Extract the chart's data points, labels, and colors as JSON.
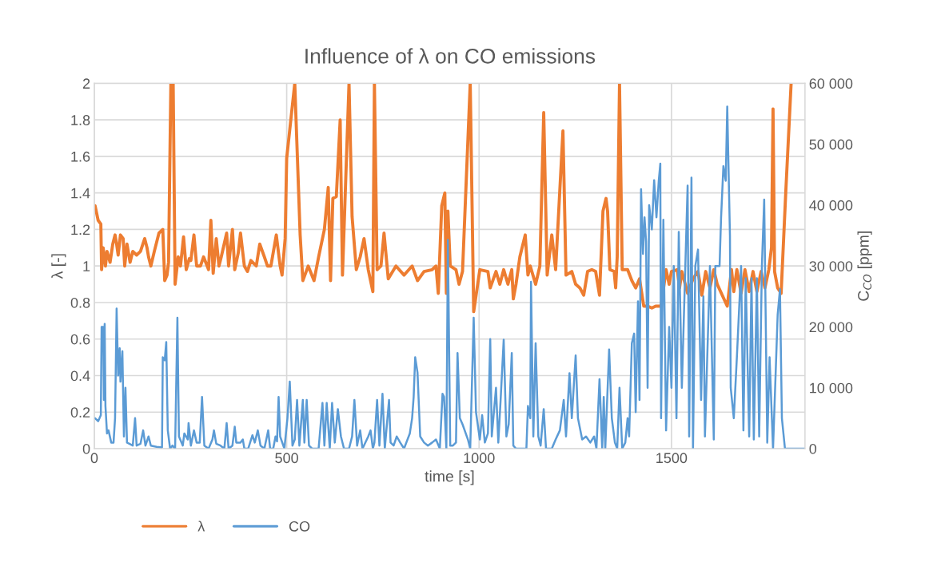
{
  "chart_data": {
    "type": "line",
    "title": "Influence of λ on CO emissions",
    "xlabel": "time [s]",
    "ylabel": "λ [-]",
    "y2label": "C$_{CO}$ [ppm]",
    "xlim": [
      0,
      1847
    ],
    "xticks": [
      0,
      500,
      1000,
      1500
    ],
    "ylim": [
      0,
      2
    ],
    "yticks": [
      0,
      0.2,
      0.4,
      0.6,
      0.8,
      1,
      1.2,
      1.4,
      1.6,
      1.8,
      2
    ],
    "y2lim": [
      0,
      60000
    ],
    "y2ticks": [
      {
        "value": 0,
        "label": "0"
      },
      {
        "value": 10000,
        "label": "10 000"
      },
      {
        "value": 20000,
        "label": "20 000"
      },
      {
        "value": 30000,
        "label": "30 000"
      },
      {
        "value": 40000,
        "label": "40 000"
      },
      {
        "value": 50000,
        "label": "50 000"
      },
      {
        "value": 60000,
        "label": "60 000"
      }
    ],
    "grid": true,
    "legend": "bottom",
    "marker": "none",
    "line_style": "solid",
    "series": [
      {
        "name": "λ",
        "color": "#ed7d31",
        "x": [
          2,
          10,
          17,
          19,
          23,
          29,
          33,
          41,
          48,
          54,
          58,
          62,
          68,
          75,
          79,
          85,
          93,
          100,
          110,
          120,
          131,
          137,
          141,
          147,
          156,
          168,
          178,
          183,
          189,
          193,
          199,
          205,
          210,
          218,
          224,
          232,
          239,
          247,
          251,
          259,
          266,
          276,
          284,
          297,
          303,
          309,
          317,
          324,
          330,
          344,
          349,
          359,
          365,
          374,
          380,
          390,
          398,
          407,
          421,
          430,
          442,
          450,
          459,
          473,
          483,
          488,
          496,
          500,
          521,
          535,
          542,
          556,
          571,
          583,
          598,
          608,
          614,
          620,
          629,
          639,
          645,
          662,
          670,
          681,
          691,
          701,
          712,
          724,
          728,
          735,
          745,
          753,
          764,
          784,
          805,
          826,
          840,
          857,
          878,
          888,
          894,
          903,
          911,
          915,
          919,
          925,
          940,
          948,
          957,
          977,
          986,
          1002,
          1023,
          1029,
          1044,
          1054,
          1064,
          1075,
          1085,
          1089,
          1096,
          1106,
          1120,
          1127,
          1133,
          1147,
          1158,
          1168,
          1177,
          1189,
          1199,
          1218,
          1226,
          1241,
          1251,
          1262,
          1272,
          1282,
          1293,
          1303,
          1313,
          1322,
          1330,
          1334,
          1340,
          1351,
          1355,
          1359,
          1365,
          1372,
          1386,
          1397,
          1407,
          1417,
          1428,
          1438,
          1449,
          1459,
          1473,
          1486,
          1494,
          1500,
          1515,
          1521,
          1527,
          1542,
          1556,
          1569,
          1579,
          1589,
          1600,
          1610,
          1619,
          1645,
          1656,
          1662,
          1670,
          1681,
          1691,
          1702,
          1712,
          1722,
          1733,
          1743,
          1753,
          1760,
          1764,
          1768,
          1776,
          1785,
          1797,
          1811
        ],
        "values": [
          1.33,
          1.25,
          1.23,
          0.98,
          1.1,
          1.0,
          1.08,
          1.02,
          1.12,
          1.17,
          1.12,
          1.06,
          1.17,
          1.15,
          1.0,
          1.12,
          1.02,
          1.08,
          1.06,
          1.08,
          1.15,
          1.1,
          1.05,
          1.0,
          1.08,
          1.18,
          1.2,
          0.92,
          0.95,
          1.02,
          2.0,
          2.0,
          0.9,
          1.05,
          1.0,
          1.16,
          0.98,
          1.04,
          1.03,
          1.17,
          1.0,
          1.0,
          1.05,
          0.98,
          1.25,
          0.96,
          1.15,
          1.0,
          1.05,
          1.18,
          1.0,
          1.2,
          0.98,
          1.07,
          1.18,
          1.0,
          0.97,
          1.03,
          1.0,
          1.12,
          1.05,
          1.0,
          1.0,
          1.17,
          1.0,
          0.95,
          1.15,
          1.59,
          2.0,
          1.17,
          0.92,
          1.0,
          0.92,
          1.05,
          1.2,
          1.43,
          0.92,
          1.37,
          1.38,
          1.8,
          0.95,
          2.0,
          1.27,
          0.98,
          1.05,
          1.15,
          0.98,
          0.86,
          2.0,
          0.98,
          1.0,
          1.18,
          0.93,
          1.0,
          0.95,
          1.0,
          0.92,
          0.97,
          0.98,
          1.0,
          0.85,
          1.33,
          1.4,
          0.85,
          1.3,
          1.0,
          0.98,
          0.9,
          0.97,
          2.0,
          0.75,
          0.98,
          0.97,
          0.88,
          0.97,
          0.9,
          0.98,
          0.9,
          0.98,
          0.82,
          0.9,
          1.05,
          1.17,
          0.95,
          1.0,
          0.9,
          1.0,
          1.84,
          0.95,
          1.17,
          0.98,
          1.74,
          0.95,
          0.97,
          0.9,
          0.88,
          0.84,
          0.97,
          0.98,
          0.97,
          0.84,
          1.3,
          1.37,
          1.3,
          0.98,
          0.97,
          0.88,
          1.05,
          2.0,
          0.98,
          0.98,
          0.92,
          0.88,
          0.93,
          0.78,
          0.78,
          0.77,
          0.78,
          0.78,
          0.98,
          0.9,
          0.97,
          0.98,
          0.88,
          0.97,
          0.85,
          0.93,
          0.97,
          0.84,
          0.97,
          0.88,
          0.98,
          0.9,
          0.78,
          0.98,
          0.86,
          0.98,
          0.85,
          0.98,
          0.86,
          0.97,
          0.86,
          0.97,
          0.88,
          0.98,
          1.1,
          1.86,
          0.97,
          0.88,
          0.85,
          1.4,
          2.0
        ]
      },
      {
        "name": "CO",
        "color": "#5b9bd5",
        "axis": "y2",
        "x": [
          2,
          10,
          17,
          19,
          23,
          25,
          27,
          29,
          33,
          37,
          44,
          50,
          54,
          58,
          62,
          66,
          68,
          73,
          77,
          81,
          85,
          100,
          106,
          110,
          120,
          127,
          133,
          141,
          147,
          162,
          176,
          178,
          183,
          187,
          191,
          197,
          203,
          210,
          216,
          220,
          230,
          234,
          243,
          245,
          251,
          259,
          266,
          274,
          280,
          286,
          297,
          307,
          311,
          317,
          328,
          338,
          344,
          349,
          359,
          365,
          369,
          380,
          386,
          390,
          400,
          411,
          417,
          425,
          432,
          442,
          452,
          457,
          465,
          471,
          475,
          479,
          483,
          494,
          502,
          508,
          515,
          521,
          527,
          533,
          542,
          546,
          552,
          558,
          566,
          583,
          593,
          598,
          604,
          612,
          618,
          625,
          633,
          641,
          649,
          662,
          670,
          676,
          683,
          691,
          697,
          712,
          718,
          724,
          728,
          735,
          741,
          749,
          755,
          766,
          770,
          778,
          786,
          795,
          805,
          820,
          826,
          830,
          834,
          840,
          847,
          857,
          867,
          878,
          888,
          898,
          905,
          909,
          915,
          919,
          925,
          932,
          940,
          944,
          950,
          957,
          971,
          977,
          986,
          992,
          1002,
          1008,
          1015,
          1023,
          1029,
          1033,
          1044,
          1050,
          1056,
          1064,
          1071,
          1077,
          1085,
          1089,
          1096,
          1123,
          1127,
          1133,
          1135,
          1141,
          1147,
          1154,
          1160,
          1168,
          1174,
          1189,
          1199,
          1210,
          1220,
          1226,
          1235,
          1241,
          1251,
          1257,
          1268,
          1278,
          1289,
          1299,
          1305,
          1313,
          1320,
          1324,
          1328,
          1338,
          1345,
          1353,
          1359,
          1365,
          1372,
          1380,
          1386,
          1390,
          1397,
          1403,
          1407,
          1413,
          1417,
          1421,
          1426,
          1430,
          1434,
          1438,
          1442,
          1449,
          1455,
          1461,
          1467,
          1471,
          1473,
          1479,
          1486,
          1494,
          1500,
          1506,
          1513,
          1519,
          1527,
          1542,
          1546,
          1552,
          1556,
          1562,
          1569,
          1577,
          1583,
          1587,
          1600,
          1610,
          1614,
          1625,
          1629,
          1635,
          1641,
          1645,
          1652,
          1654,
          1662,
          1670,
          1681,
          1687,
          1693,
          1702,
          1708,
          1714,
          1722,
          1728,
          1735,
          1741,
          1749,
          1755,
          1764,
          1776,
          1782,
          1787,
          1795,
          1847
        ],
        "values": [
          5000,
          4500,
          5500,
          20000,
          20000,
          8000,
          20500,
          7000,
          2500,
          3000,
          1000,
          1000,
          5000,
          23000,
          12000,
          16500,
          11000,
          16000,
          2000,
          10000,
          1000,
          500,
          5000,
          500,
          800,
          3000,
          500,
          2000,
          500,
          300,
          200,
          15000,
          14500,
          17500,
          3000,
          0,
          500,
          0,
          21500,
          2000,
          500,
          2500,
          1500,
          4200,
          500,
          3000,
          1000,
          1000,
          8500,
          500,
          0,
          1500,
          3000,
          800,
          500,
          0,
          4200,
          0,
          500,
          3600,
          1000,
          1000,
          1500,
          0,
          0,
          2200,
          1000,
          3000,
          500,
          0,
          3000,
          0,
          0,
          2000,
          1200,
          8500,
          2000,
          0,
          5000,
          11000,
          500,
          1500,
          8000,
          500,
          8000,
          1000,
          8000,
          500,
          0,
          0,
          7500,
          500,
          7500,
          0,
          7500,
          1000,
          6500,
          2000,
          0,
          0,
          2000,
          8000,
          500,
          3000,
          0,
          2000,
          3000,
          0,
          1000,
          8000,
          500,
          9000,
          0,
          8000,
          1000,
          500,
          2000,
          1000,
          0,
          2500,
          5000,
          8500,
          15000,
          12500,
          2000,
          1000,
          500,
          1000,
          1500,
          0,
          9000,
          8500,
          0,
          34300,
          500,
          500,
          1000,
          15700,
          5000,
          4000,
          1500,
          0,
          21500,
          6000,
          1500,
          5500,
          1000,
          2500,
          18000,
          2000,
          10000,
          1000,
          8000,
          17900,
          2000,
          4000,
          15700,
          500,
          0,
          0,
          7000,
          5000,
          27400,
          2000,
          17300,
          2000,
          500,
          6500,
          0,
          0,
          1500,
          3000,
          8000,
          2000,
          12400,
          5000,
          15300,
          5000,
          1500,
          2000,
          1000,
          2000,
          0,
          11400,
          0,
          8500,
          0,
          16300,
          5000,
          1000,
          0,
          10000,
          0,
          1000,
          5000,
          2000,
          17300,
          18900,
          6000,
          24200,
          8000,
          42600,
          32000,
          38000,
          34000,
          10000,
          40000,
          36000,
          44100,
          38000,
          44000,
          46800,
          5000,
          37600,
          3000,
          20000,
          10000,
          30000,
          5000,
          35600,
          10000,
          43200,
          2000,
          44500,
          0,
          30000,
          32700,
          8000,
          25000,
          2000,
          30000,
          1500,
          30000,
          30000,
          38000,
          46400,
          44000,
          56200,
          35000,
          10000,
          5000,
          15000,
          30000,
          3000,
          28000,
          2000,
          28000,
          1500,
          28000,
          2000,
          30000,
          40900,
          1000,
          15000,
          0,
          22000,
          26200,
          5000,
          0,
          0
        ]
      }
    ]
  }
}
